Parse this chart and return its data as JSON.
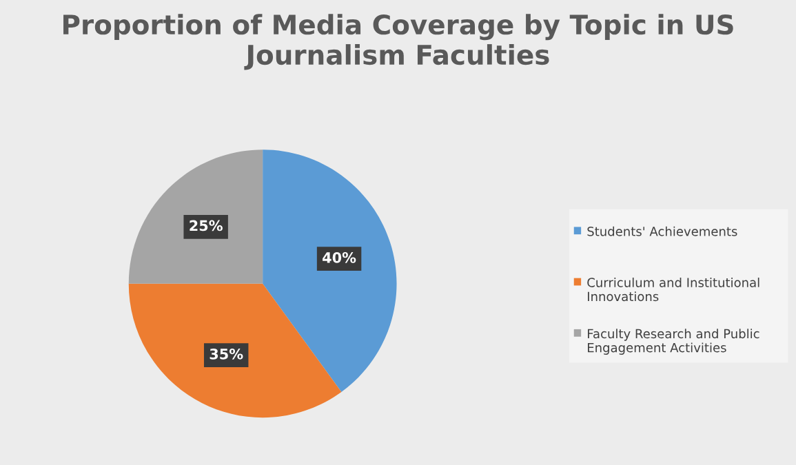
{
  "chart_data": {
    "type": "pie",
    "title": "Proportion of Media Coverage by Topic in US Journalism Faculties",
    "categories": [
      "Students' Achievements",
      "Curriculum and Institutional Innovations",
      "Faculty Research and Public Engagement Activities"
    ],
    "values": [
      40,
      35,
      25
    ],
    "colors": [
      "#5b9bd5",
      "#ed7d31",
      "#a5a5a5"
    ],
    "value_labels": [
      "40%",
      "35%",
      "25%"
    ],
    "legend": "right"
  }
}
